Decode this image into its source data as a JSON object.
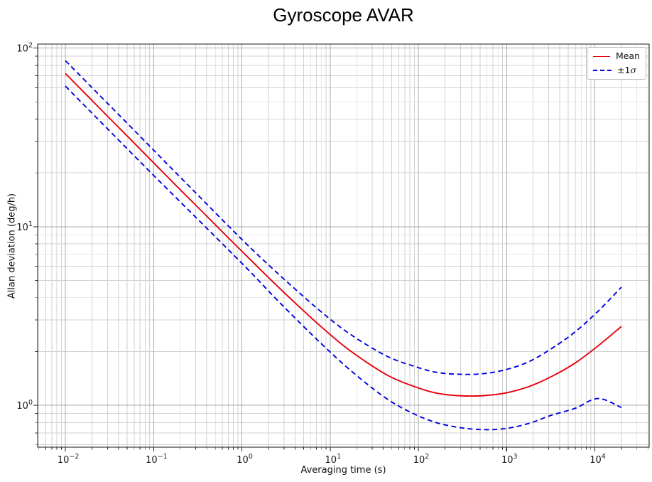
{
  "title": "Gyroscope AVAR",
  "legend": {
    "position": "upper right",
    "items": [
      {
        "label": "Mean",
        "color": "#e8000b",
        "style": "solid"
      },
      {
        "label": "±1σ",
        "prefix": "±1",
        "sigma": "σ",
        "color": "#0000e0",
        "style": "dashed"
      }
    ]
  },
  "chart_data": {
    "type": "line",
    "title": "Gyroscope AVAR",
    "xlabel": "Averaging time (s)",
    "ylabel": "Allan deviation (deg/h)",
    "xscale": "log",
    "yscale": "log",
    "xlim": [
      0.00484,
      41300
    ],
    "ylim": [
      0.582,
      105.3
    ],
    "x_tick_exponents": [
      -2,
      -1,
      0,
      1,
      2,
      3,
      4
    ],
    "y_tick_exponents": [
      0,
      1,
      2
    ],
    "grid": "both",
    "legend_position": "upper right",
    "x": [
      0.01,
      0.0183,
      0.0335,
      0.0613,
      0.112,
      0.205,
      0.376,
      0.688,
      1.26,
      2.3,
      4.22,
      7.72,
      14.1,
      25.9,
      47.3,
      86.6,
      158,
      290,
      531,
      972,
      1778,
      3255,
      5957,
      10900,
      20000
    ],
    "series": [
      {
        "name": "Mean",
        "color": "#e8000b",
        "style": "solid",
        "values": [
          72.0,
          53.2,
          39.3,
          29.1,
          21.5,
          15.9,
          11.8,
          8.74,
          6.5,
          4.85,
          3.65,
          2.78,
          2.16,
          1.74,
          1.45,
          1.28,
          1.17,
          1.13,
          1.13,
          1.17,
          1.27,
          1.45,
          1.72,
          2.15,
          2.76
        ]
      },
      {
        "name": "+1σ",
        "color": "#0000e0",
        "style": "dashed",
        "values": [
          85.0,
          62.8,
          46.4,
          34.3,
          25.3,
          18.7,
          13.8,
          10.2,
          7.58,
          5.73,
          4.37,
          3.37,
          2.66,
          2.18,
          1.85,
          1.66,
          1.53,
          1.49,
          1.5,
          1.58,
          1.75,
          2.08,
          2.57,
          3.36,
          4.58
        ]
      },
      {
        "name": "−1σ",
        "color": "#0000e0",
        "style": "dashed",
        "values": [
          61.2,
          45.2,
          33.4,
          24.7,
          18.3,
          13.6,
          10.1,
          7.5,
          5.55,
          4.06,
          3.0,
          2.24,
          1.7,
          1.32,
          1.06,
          0.9,
          0.8,
          0.75,
          0.73,
          0.74,
          0.79,
          0.88,
          0.96,
          1.09,
          0.97
        ]
      }
    ]
  }
}
